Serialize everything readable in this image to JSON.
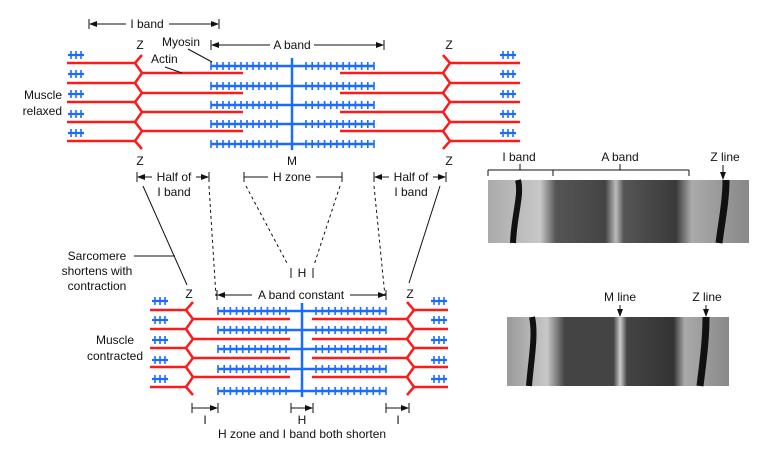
{
  "colors": {
    "actin": "#ff1a1a",
    "myosin": "#1a6cff",
    "text": "#111111"
  },
  "relaxed": {
    "label_line1": "Muscle",
    "label_line2": "relaxed",
    "i_band": "I band",
    "a_band": "A band",
    "myosin": "Myosin",
    "actin": "Actin",
    "z": "Z",
    "m": "M",
    "half_i_line1": "Half of",
    "half_i_line2": "I band",
    "h_zone": "H zone"
  },
  "contracted": {
    "label_line1": "Muscle",
    "label_line2": "contracted",
    "sarcomere_line1": "Sarcomere",
    "sarcomere_line2": "shortens with",
    "sarcomere_line3": "contraction",
    "h": "H",
    "a_band_constant": "A band constant",
    "z": "Z",
    "i": "I",
    "caption": "H zone and I band both shorten"
  },
  "micrographs": {
    "relaxed": {
      "i_band": "I band",
      "a_band": "A band",
      "z_line": "Z line"
    },
    "contracted": {
      "m_line": "M line",
      "z_line": "Z line"
    }
  }
}
